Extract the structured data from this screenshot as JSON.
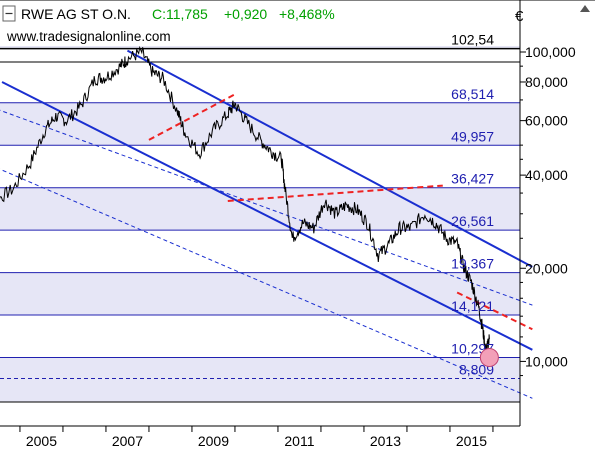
{
  "header": {
    "symbol": "RWE AG ST O.N.",
    "close": "C:11,785",
    "change": "+0,920",
    "change_pct": "+8,468%",
    "currency": "€",
    "source": "www.tradesignalonline.com"
  },
  "colors": {
    "background": "#ffffff",
    "band_fill": "#e6e6f6",
    "level_line": "#2020b0",
    "channel_line": "#1a2fd0",
    "trend_dash": "#ee2222",
    "price_line": "#000000",
    "positive_change": "#00a000",
    "highlight_circle": "#f2a0b8"
  },
  "chart_data": {
    "type": "line",
    "title": "",
    "y_scale": "log",
    "ylim": [
      7.2,
      118
    ],
    "xlim": [
      "2004-01",
      "2016-12"
    ],
    "x_ticks": [
      "2005",
      "2007",
      "2009",
      "2011",
      "2013",
      "2015"
    ],
    "y_ticks": [
      "10,000",
      "20,000",
      "40,000",
      "60,000",
      "80,000",
      "100,000"
    ],
    "fib_levels": [
      {
        "value": 102.54,
        "label": "102,54"
      },
      {
        "value": 68.514,
        "label": "68,514"
      },
      {
        "value": 49.957,
        "label": "49,957"
      },
      {
        "value": 36.427,
        "label": "36,427"
      },
      {
        "value": 26.561,
        "label": "26,561"
      },
      {
        "value": 19.367,
        "label": "19,367"
      },
      {
        "value": 14.121,
        "label": "14,121"
      },
      {
        "value": 10.297,
        "label": "10,297"
      },
      {
        "value": 8.809,
        "label": "8,809"
      }
    ],
    "price_series": [
      [
        "2004-01",
        30
      ],
      [
        "2004-06",
        33
      ],
      [
        "2004-11",
        36
      ],
      [
        "2005-04",
        44
      ],
      [
        "2005-08",
        56
      ],
      [
        "2005-11",
        62
      ],
      [
        "2006-02",
        60
      ],
      [
        "2006-06",
        67
      ],
      [
        "2006-10",
        82
      ],
      [
        "2007-01",
        83
      ],
      [
        "2007-05",
        90
      ],
      [
        "2007-07",
        95
      ],
      [
        "2007-11",
        100
      ],
      [
        "2008-02",
        86
      ],
      [
        "2008-05",
        82
      ],
      [
        "2008-09",
        64
      ],
      [
        "2008-11",
        55
      ],
      [
        "2009-03",
        47
      ],
      [
        "2009-07",
        56
      ],
      [
        "2009-11",
        63
      ],
      [
        "2010-01",
        68
      ],
      [
        "2010-04",
        60
      ],
      [
        "2010-08",
        52
      ],
      [
        "2010-11",
        48
      ],
      [
        "2011-02",
        45
      ],
      [
        "2011-03",
        36
      ],
      [
        "2011-05",
        25
      ],
      [
        "2011-08",
        28
      ],
      [
        "2011-11",
        27
      ],
      [
        "2012-02",
        33
      ],
      [
        "2012-05",
        30
      ],
      [
        "2012-08",
        32
      ],
      [
        "2012-11",
        31
      ],
      [
        "2013-02",
        28
      ],
      [
        "2013-05",
        22
      ],
      [
        "2013-08",
        24
      ],
      [
        "2013-11",
        27
      ],
      [
        "2014-02",
        27
      ],
      [
        "2014-06",
        30
      ],
      [
        "2014-09",
        28
      ],
      [
        "2014-12",
        25
      ],
      [
        "2015-03",
        24
      ],
      [
        "2015-05",
        20
      ],
      [
        "2015-07",
        18
      ],
      [
        "2015-09",
        15
      ],
      [
        "2015-10",
        13
      ],
      [
        "2015-11",
        10.9
      ],
      [
        "2015-12",
        11.785
      ]
    ],
    "channel_upper": [
      [
        "2007-07",
        101
      ],
      [
        "2016-12",
        20.2
      ]
    ],
    "channel_lower": [
      [
        "2004-08",
        80
      ],
      [
        "2016-12",
        10.9
      ]
    ],
    "channel_mid_dashed": [
      [
        "2004-01",
        69
      ],
      [
        "2016-12",
        15.2
      ]
    ],
    "channel_low_dashed": [
      [
        "2004-01",
        45
      ],
      [
        "2016-12",
        7.6
      ]
    ],
    "red_trend_1": [
      [
        "2008-01",
        52
      ],
      [
        "2010-01",
        73
      ]
    ],
    "red_trend_2": [
      [
        "2009-11",
        33
      ],
      [
        "2014-11",
        37
      ]
    ],
    "red_trend_3": [
      [
        "2015-03",
        16.7
      ],
      [
        "2016-12",
        12.7
      ]
    ],
    "highlight_point": [
      "2015-12",
      10.297
    ]
  }
}
